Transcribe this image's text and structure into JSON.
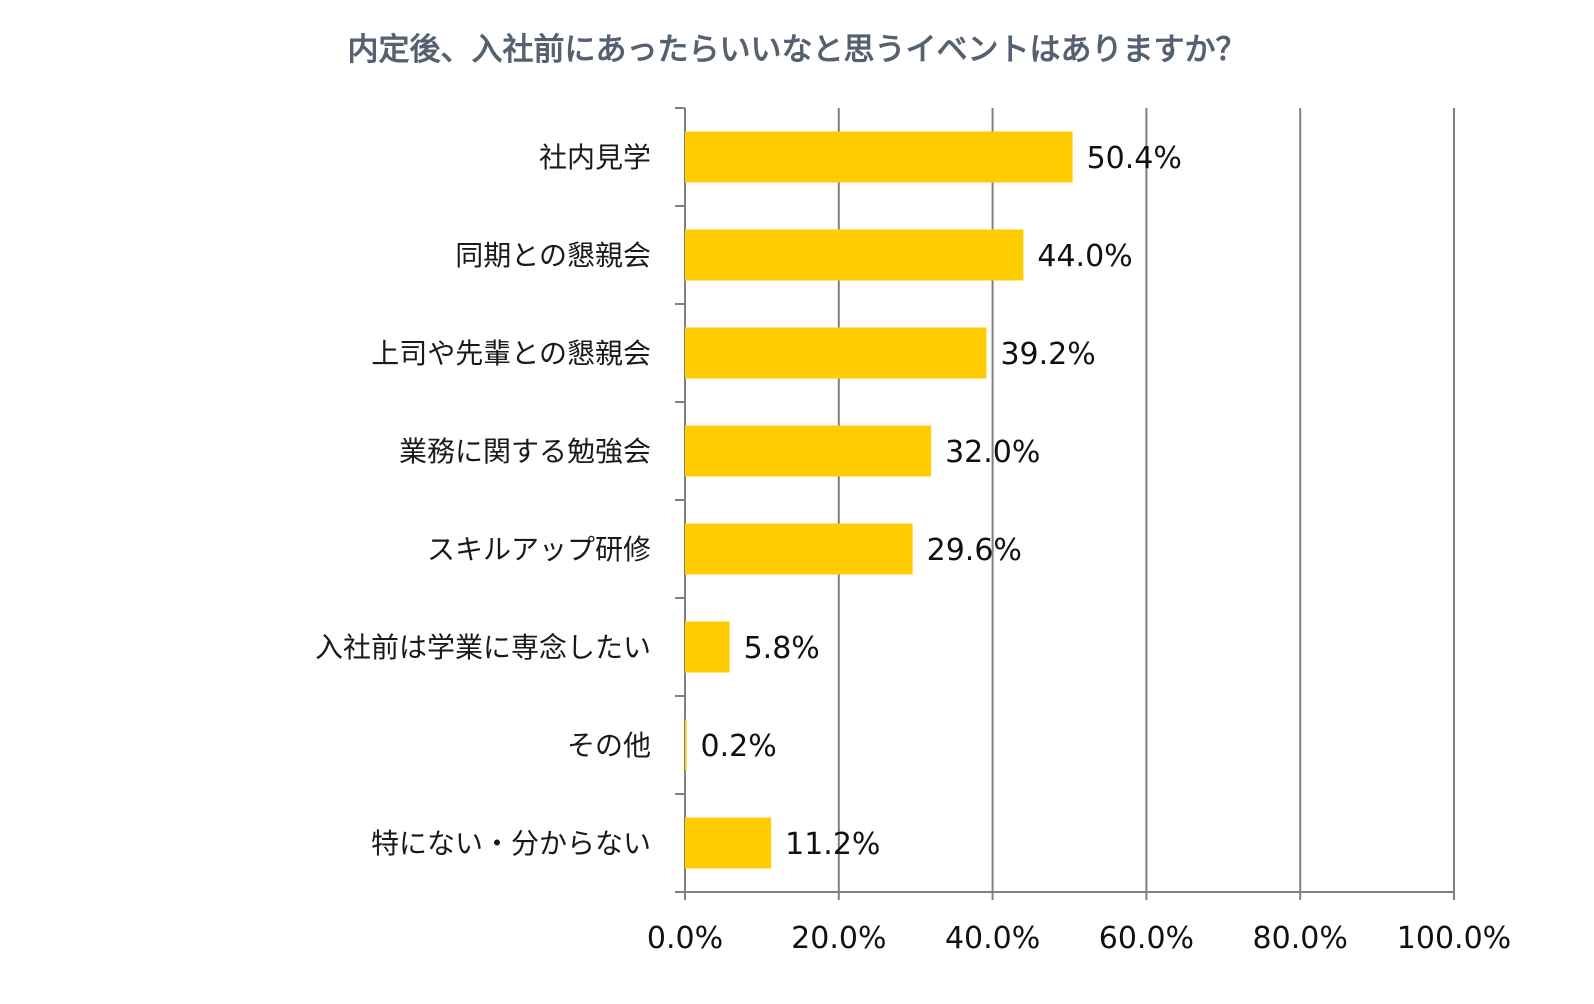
{
  "chart_data": {
    "type": "bar",
    "orientation": "horizontal",
    "title": "内定後、入社前にあったらいいなと思うイベントはありますか？",
    "categories": [
      "社内見学",
      "同期との懇親会",
      "上司や先輩との懇親会",
      "業務に関する勉強会",
      "スキルアップ研修",
      "入社前は学業に専念したい",
      "その他",
      "特にない・分からない"
    ],
    "values": [
      50.4,
      44.0,
      39.2,
      32.0,
      29.6,
      5.8,
      0.2,
      11.2
    ],
    "value_labels": [
      "50.4%",
      "44.0%",
      "39.2%",
      "32.0%",
      "29.6%",
      "5.8%",
      "0.2%",
      "11.2%"
    ],
    "xlim": [
      0,
      100
    ],
    "xticks": [
      0,
      20,
      40,
      60,
      80,
      100
    ],
    "xtick_labels": [
      "0.0%",
      "20.0%",
      "40.0%",
      "60.0%",
      "80.0%",
      "100.0%"
    ],
    "grid": true,
    "legend": "none",
    "colors": {
      "bar": "#FFCC00",
      "grid": "#808080",
      "title": "#556070"
    }
  }
}
